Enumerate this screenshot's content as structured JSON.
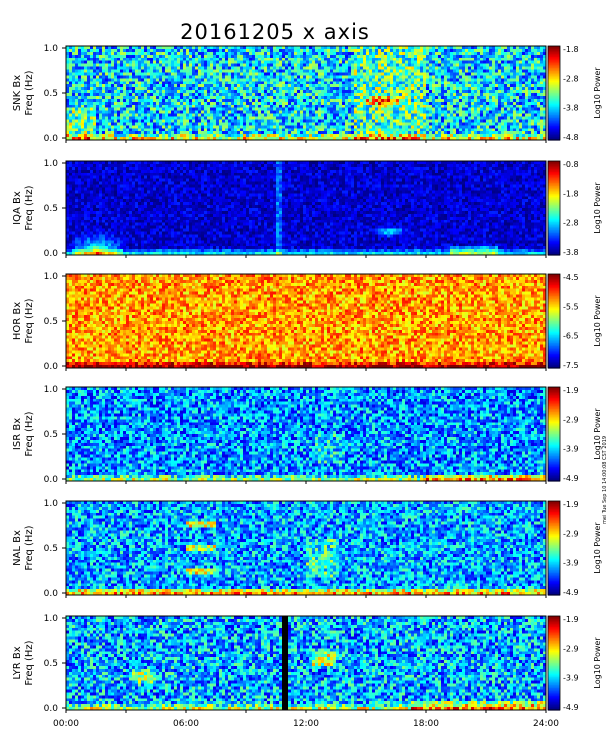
{
  "title": "20161205 x axis",
  "side_note": "mei Tue Sep 10 14:00:08 CST 2019",
  "chart_data": {
    "type": "heatmap",
    "title": "20161205 x axis",
    "x_ticks": [
      "00:00",
      "06:00",
      "12:00",
      "18:00",
      "24:00"
    ],
    "x_range_hours": [
      0,
      24
    ],
    "y_range_hz": [
      0,
      1.0
    ],
    "y_ticks": [
      "0.0",
      "0.5",
      "1.0"
    ],
    "colorbar_label": "Log10 Power",
    "panels": [
      {
        "station": "SNK",
        "ylabel_line1": "SNK Bx",
        "ylabel_line2": "Freq (Hz)",
        "colorbar_ticks": [
          "-1.8",
          "-2.8",
          "-3.8",
          "-4.8"
        ],
        "colorbar_range": [
          -4.8,
          -1.8
        ],
        "background_level": 0.35,
        "noise": 0.22
      },
      {
        "station": "IQA",
        "ylabel_line1": "IQA Bx",
        "ylabel_line2": "Freq (Hz)",
        "colorbar_ticks": [
          "-0.8",
          "-1.8",
          "-2.8",
          "-3.8"
        ],
        "colorbar_range": [
          -3.8,
          -0.8
        ],
        "background_level": 0.08,
        "noise": 0.08
      },
      {
        "station": "HOR",
        "ylabel_line1": "HOR Bx",
        "ylabel_line2": "Freq (Hz)",
        "colorbar_ticks": [
          "-4.5",
          "-5.5",
          "-6.5",
          "-7.5"
        ],
        "colorbar_range": [
          -7.5,
          -4.5
        ],
        "background_level": 0.72,
        "noise": 0.14
      },
      {
        "station": "ISR",
        "ylabel_line1": "ISR Bx",
        "ylabel_line2": "Freq (Hz)",
        "colorbar_ticks": [
          "-1.9",
          "-2.9",
          "-3.9",
          "-4.9"
        ],
        "colorbar_range": [
          -4.9,
          -1.9
        ],
        "background_level": 0.27,
        "noise": 0.18
      },
      {
        "station": "NAL",
        "ylabel_line1": "NAL Bx",
        "ylabel_line2": "Freq (Hz)",
        "colorbar_ticks": [
          "-1.9",
          "-2.9",
          "-3.9",
          "-4.9"
        ],
        "colorbar_range": [
          -4.9,
          -1.9
        ],
        "background_level": 0.29,
        "noise": 0.18
      },
      {
        "station": "LYR",
        "ylabel_line1": "LYR Bx",
        "ylabel_line2": "Freq (Hz)",
        "colorbar_ticks": [
          "-1.9",
          "-2.9",
          "-3.9",
          "-4.9"
        ],
        "colorbar_range": [
          -4.9,
          -1.9
        ],
        "background_level": 0.3,
        "noise": 0.2
      }
    ]
  }
}
